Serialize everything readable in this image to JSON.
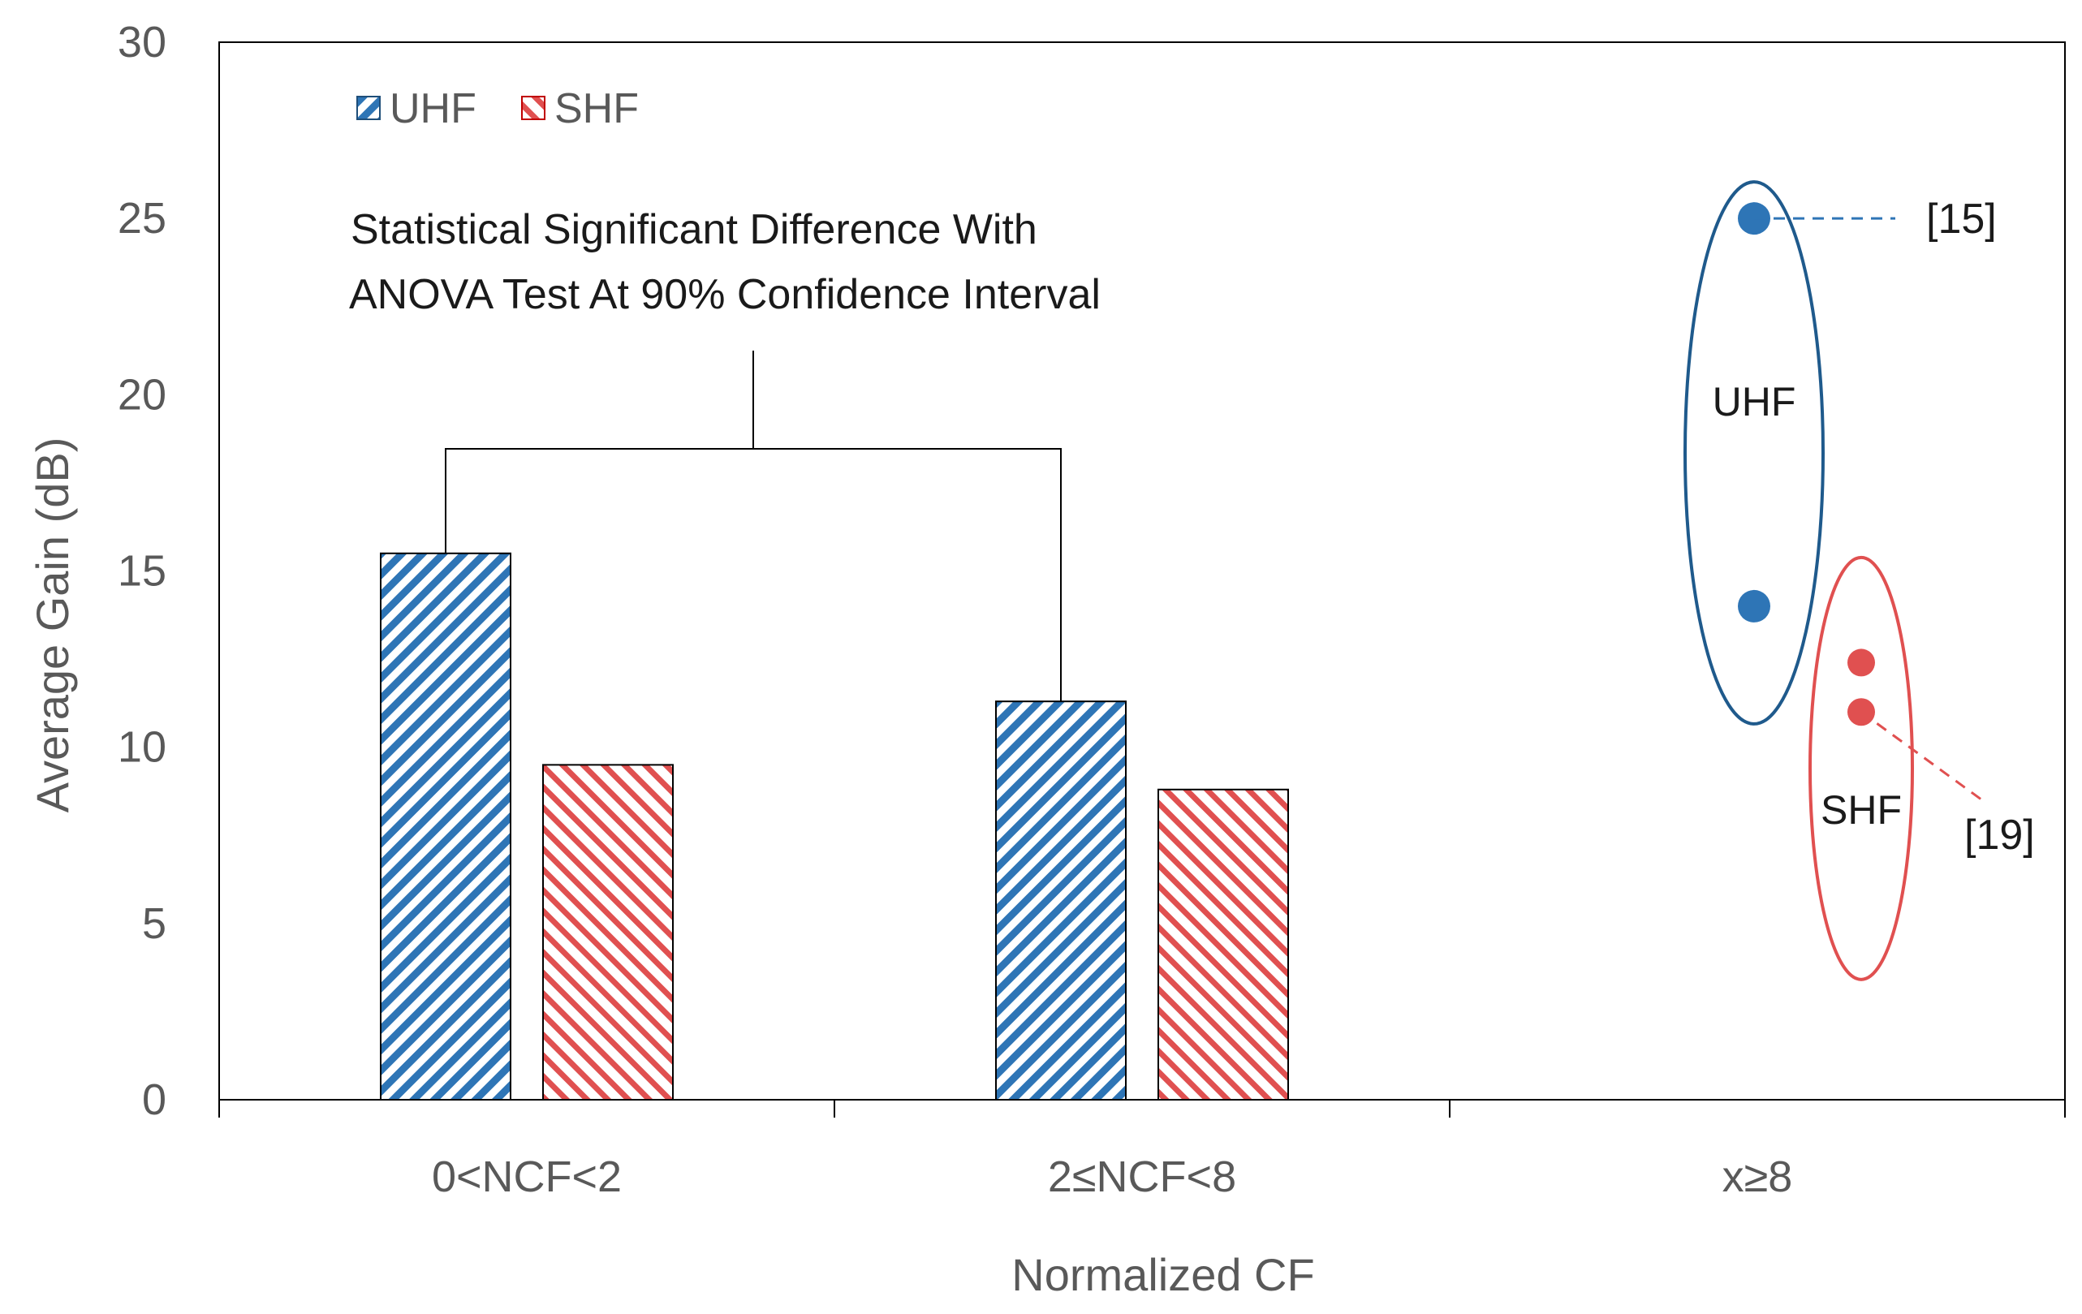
{
  "chart_data": {
    "type": "bar",
    "title": "",
    "xlabel": "Normalized CF",
    "ylabel": "Average Gain (dB)",
    "ylim": [
      0,
      30
    ],
    "yticks": [
      0,
      5,
      10,
      15,
      20,
      25,
      30
    ],
    "categories": [
      "0<NCF<2",
      "2≤NCF<8",
      "x≥8"
    ],
    "series": [
      {
        "name": "UHF",
        "values": [
          15.5,
          11.3,
          null
        ],
        "color": "#2e75b6",
        "pattern": "hatch"
      },
      {
        "name": "SHF",
        "values": [
          9.5,
          8.8,
          null
        ],
        "color": "#e05050",
        "pattern": "hatch"
      }
    ],
    "scatter": [
      {
        "series": "UHF",
        "category": "x≥8",
        "values": [
          25.0,
          14.0
        ],
        "color": "#2e75b6",
        "group_label": "UHF",
        "group_color": "#1f5a8c"
      },
      {
        "series": "SHF",
        "category": "x≥8",
        "values": [
          12.4,
          11.0
        ],
        "color": "#e05050",
        "group_label": "SHF",
        "group_color": "#e05050"
      }
    ],
    "references": [
      {
        "label": "[15]",
        "series": "UHF",
        "point_value": 25.0
      },
      {
        "label": "[19]",
        "series": "SHF",
        "point_value": 11.0
      }
    ],
    "annotation": {
      "line1": "Statistical Significant Difference With",
      "line2": "ANOVA Test At 90% Confidence Interval"
    },
    "legend": {
      "position": "top-left",
      "items": [
        "UHF",
        "SHF"
      ]
    }
  }
}
